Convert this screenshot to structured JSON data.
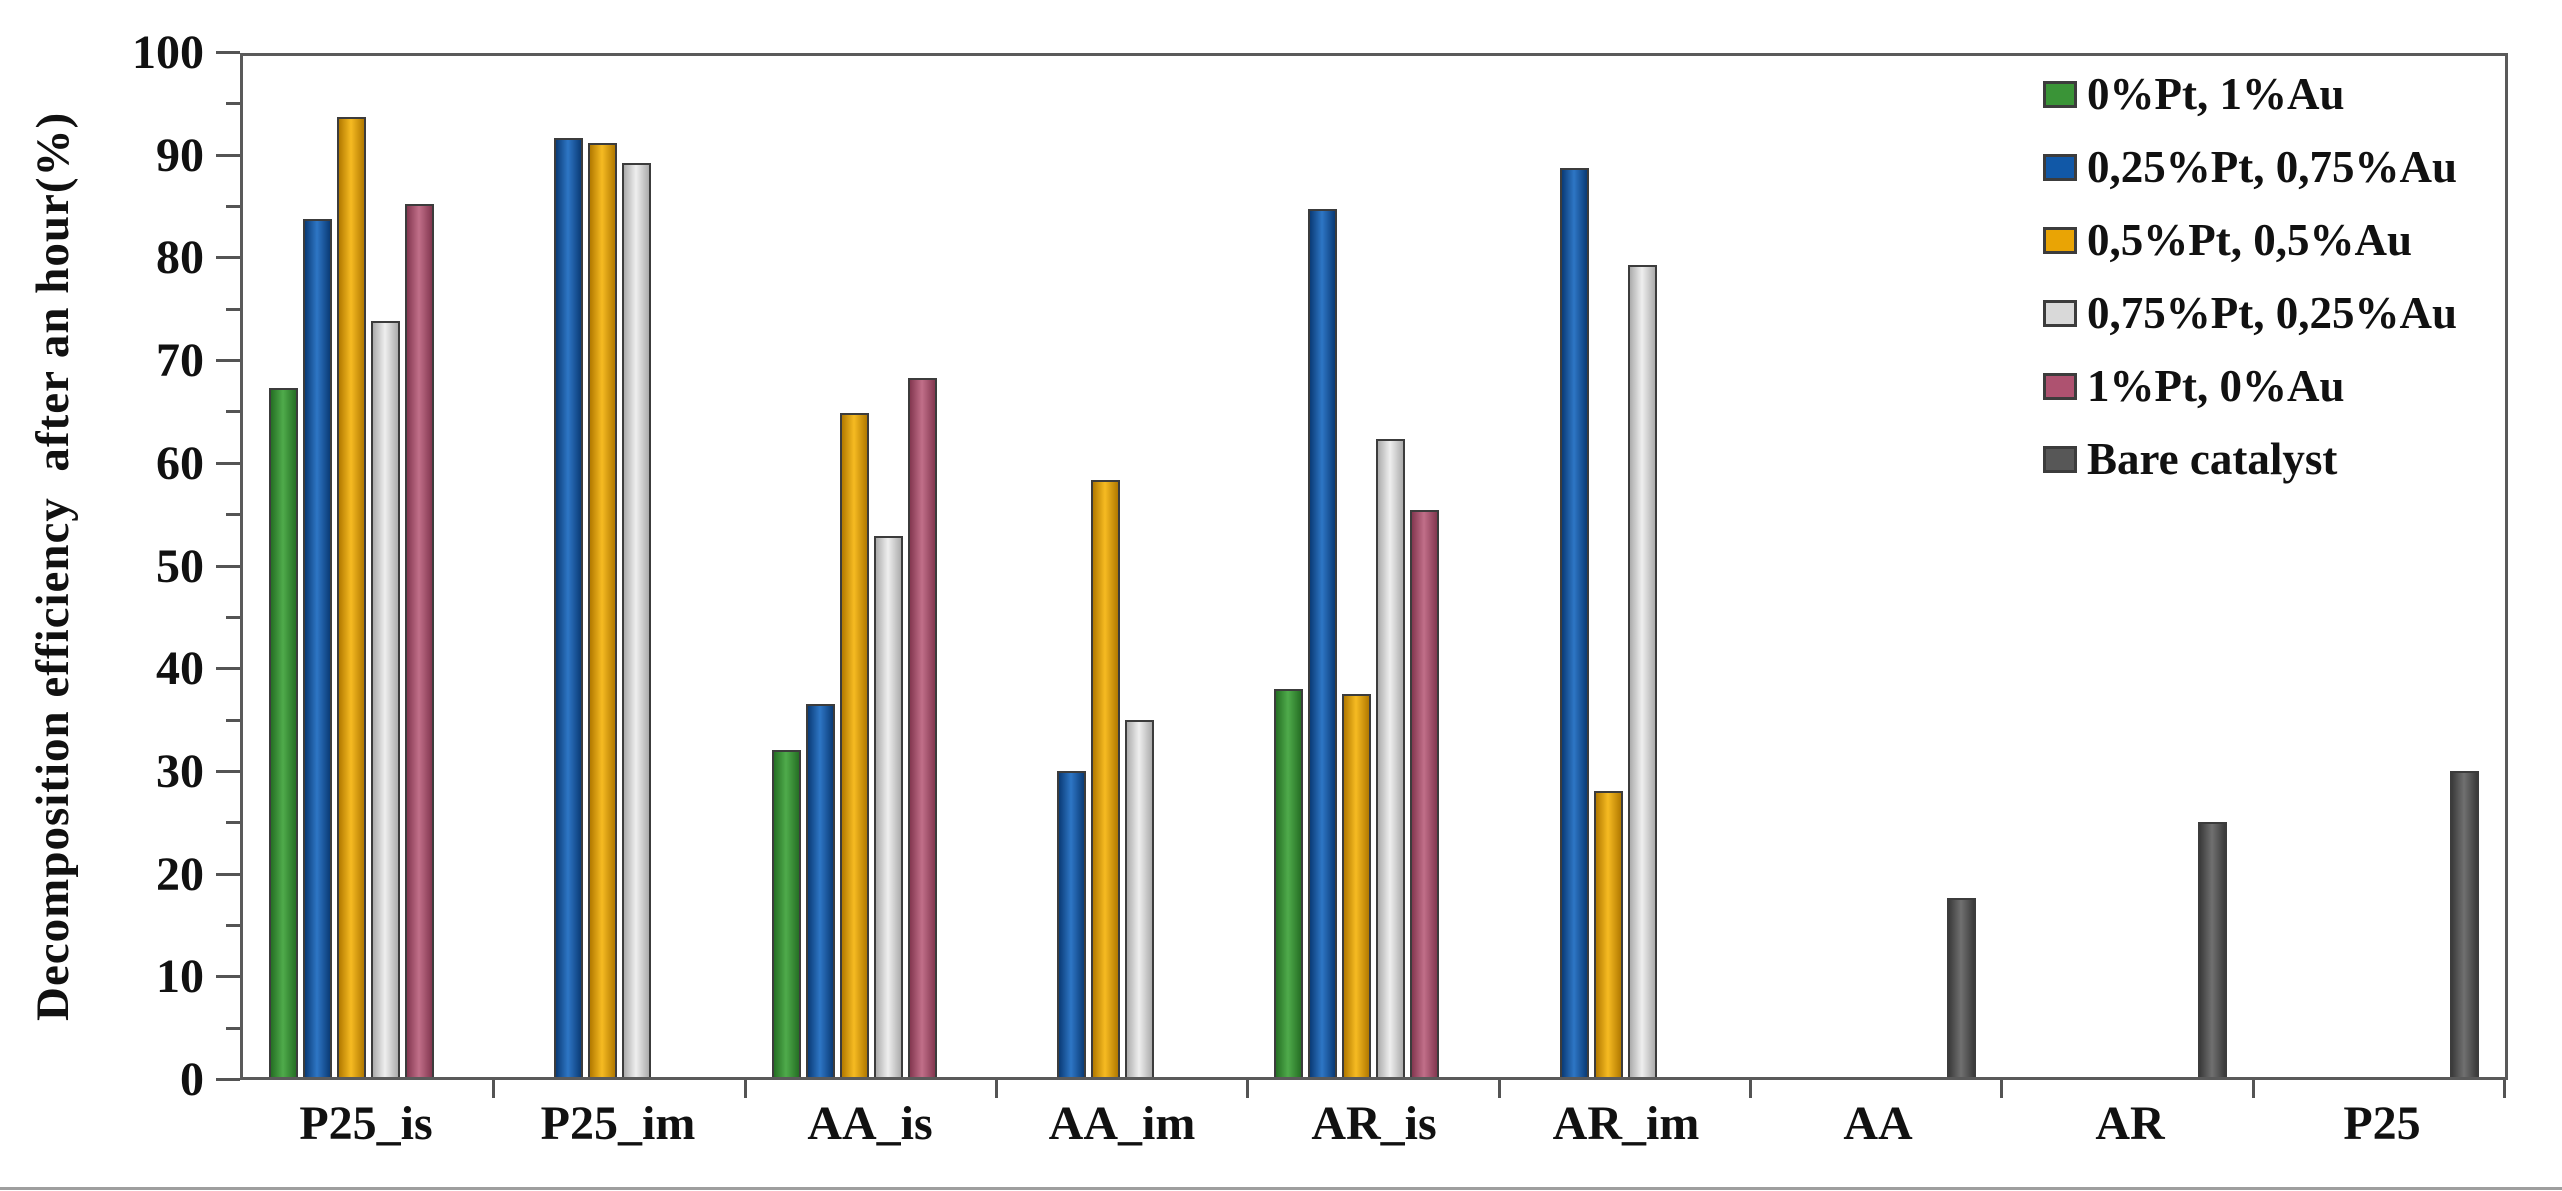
{
  "chart_data": {
    "type": "bar",
    "title": "",
    "xlabel": "",
    "ylabel": "Decomposition efficiency  after an hour(%)",
    "ylim": [
      0,
      100
    ],
    "ytick_major_step": 10,
    "ytick_minor_step": 5,
    "grid": false,
    "legend_position": "top-right-inside",
    "axis_color": "#545454",
    "text_color": "#111111",
    "categories": [
      "P25_is",
      "P25_im",
      "AA_is",
      "AA_im",
      "AR_is",
      "AR_im",
      "AA",
      "AR",
      "P25"
    ],
    "series": [
      {
        "name": "0%Pt, 1%Au",
        "color": "#3A9437",
        "color_light": "#4FAB4B",
        "color_dark": "#256F24",
        "values": [
          67.5,
          null,
          32,
          null,
          38,
          null,
          null,
          null,
          null
        ]
      },
      {
        "name": "0,25%Pt, 0,75%Au",
        "color": "#1158A7",
        "color_light": "#2E76C5",
        "color_dark": "#0A3B76",
        "values": [
          84,
          92,
          36.5,
          30,
          85,
          89,
          null,
          null,
          null
        ]
      },
      {
        "name": "0,5%Pt, 0,5%Au",
        "color": "#E9A405",
        "color_light": "#F6BB22",
        "color_dark": "#B27900",
        "values": [
          94,
          91.5,
          65,
          58.5,
          37.5,
          28,
          null,
          null,
          null
        ]
      },
      {
        "name": "0,75%Pt, 0,25%Au",
        "color": "#D9D9D9",
        "color_light": "#EFEFEF",
        "color_dark": "#ACACAC",
        "values": [
          74,
          89.5,
          53,
          35,
          62.5,
          79.5,
          null,
          null,
          null
        ]
      },
      {
        "name": "1%Pt, 0%Au",
        "color": "#AE5270",
        "color_light": "#C16F89",
        "color_dark": "#833750",
        "values": [
          85.5,
          null,
          68.5,
          null,
          55.5,
          null,
          null,
          null,
          null
        ]
      },
      {
        "name": "Bare catalyst",
        "color": "#575757",
        "color_light": "#707070",
        "color_dark": "#3B3B3B",
        "values": [
          null,
          null,
          null,
          null,
          null,
          null,
          17.5,
          25,
          30
        ]
      }
    ]
  }
}
